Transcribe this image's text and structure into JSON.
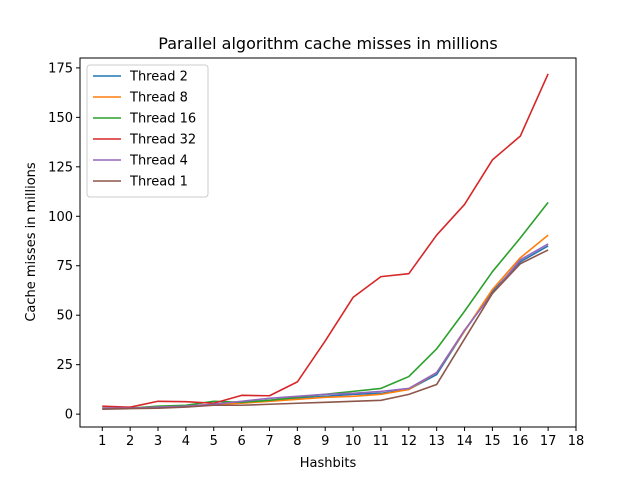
{
  "chart_data": {
    "type": "line",
    "title": "Parallel algorithm cache misses in millions",
    "xlabel": "Hashbits",
    "ylabel": "Cache misses in millions",
    "x": [
      1,
      2,
      3,
      4,
      5,
      6,
      7,
      8,
      9,
      10,
      11,
      12,
      13,
      14,
      15,
      16,
      17
    ],
    "xticks": [
      1,
      2,
      3,
      4,
      5,
      6,
      7,
      8,
      9,
      10,
      11,
      12,
      13,
      14,
      15,
      16,
      17,
      18
    ],
    "yticks": [
      0,
      25,
      50,
      75,
      100,
      125,
      150,
      175
    ],
    "xlim": [
      0.2,
      18
    ],
    "ylim": [
      -6.5,
      180
    ],
    "grid": false,
    "legend_position": "top-left",
    "series": [
      {
        "name": "Thread 2",
        "color": "#1f77b4",
        "values": [
          3.0,
          3.0,
          3.5,
          4.0,
          5.0,
          6.0,
          7.0,
          8.0,
          9.0,
          10.0,
          10.5,
          12.5,
          20.0,
          42.0,
          62.0,
          77.0,
          85.0
        ]
      },
      {
        "name": "Thread 8",
        "color": "#ff7f0e",
        "values": [
          3.0,
          3.0,
          3.5,
          4.0,
          5.0,
          5.5,
          6.5,
          7.5,
          8.5,
          9.0,
          10.0,
          12.5,
          21.0,
          42.0,
          63.0,
          79.0,
          90.5
        ]
      },
      {
        "name": "Thread 16",
        "color": "#2ca02c",
        "values": [
          3.0,
          3.0,
          4.0,
          4.5,
          6.5,
          6.0,
          7.0,
          8.5,
          10.0,
          11.5,
          13.0,
          19.0,
          33.0,
          52.0,
          72.0,
          89.0,
          107.0
        ]
      },
      {
        "name": "Thread 32",
        "color": "#d62728",
        "values": [
          4.0,
          3.5,
          6.5,
          6.3,
          5.5,
          9.5,
          9.3,
          16.3,
          37.0,
          59.0,
          69.5,
          71.0,
          90.5,
          106.0,
          128.5,
          140.5,
          172.0
        ]
      },
      {
        "name": "Thread 4",
        "color": "#9467bd",
        "values": [
          3.0,
          3.0,
          3.5,
          4.0,
          5.0,
          6.5,
          8.0,
          9.0,
          10.0,
          10.5,
          11.5,
          13.0,
          21.0,
          42.5,
          61.0,
          78.0,
          86.0
        ]
      },
      {
        "name": "Thread 1",
        "color": "#8c564b",
        "values": [
          2.5,
          2.8,
          3.0,
          3.6,
          4.5,
          4.5,
          5.0,
          5.5,
          6.0,
          6.5,
          7.0,
          10.0,
          15.0,
          38.0,
          61.0,
          76.0,
          83.0
        ]
      }
    ]
  }
}
